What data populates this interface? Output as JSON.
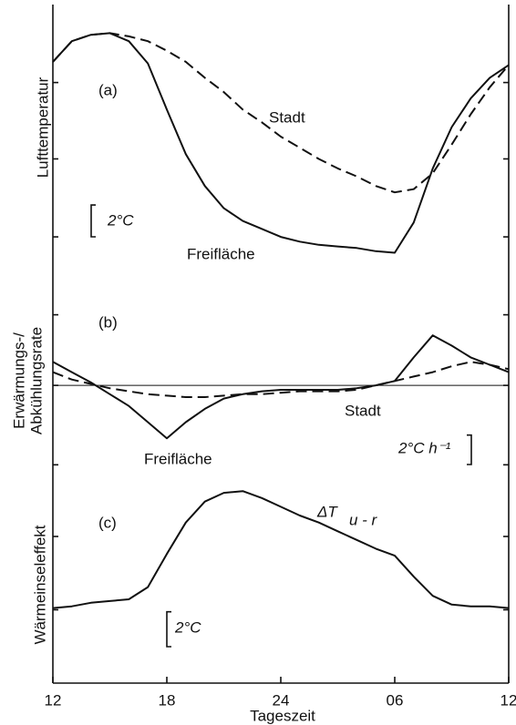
{
  "chart_data": [
    {
      "type": "line",
      "panel_label": "(a)",
      "ylabel": "Lufttemperatur",
      "x": [
        12,
        13,
        14,
        15,
        16,
        17,
        18,
        19,
        20,
        21,
        22,
        23,
        24,
        25,
        26,
        27,
        28,
        29,
        30,
        31,
        32,
        33,
        34,
        35,
        36
      ],
      "xlim": [
        12,
        36
      ],
      "ylim": [
        0,
        17
      ],
      "yticks": [
        2.4,
        7.3,
        12.1
      ],
      "series": [
        {
          "name": "Freifläche",
          "color": "#111111",
          "linestyle": "solid",
          "values": [
            13.4,
            14.7,
            15.1,
            15.2,
            14.7,
            13.3,
            10.4,
            7.6,
            5.6,
            4.2,
            3.4,
            2.9,
            2.4,
            2.1,
            1.9,
            1.8,
            1.7,
            1.5,
            1.4,
            3.3,
            6.7,
            9.3,
            11.1,
            12.4,
            13.2
          ]
        },
        {
          "name": "Stadt",
          "color": "#111111",
          "linestyle": "dashed",
          "values": [
            13.4,
            14.7,
            15.1,
            15.2,
            15.0,
            14.7,
            14.1,
            13.4,
            12.4,
            11.5,
            10.4,
            9.6,
            8.7,
            8.0,
            7.3,
            6.7,
            6.2,
            5.6,
            5.2,
            5.4,
            6.4,
            8.2,
            10.1,
            11.8,
            13.2
          ]
        }
      ],
      "scale_bar": {
        "value": 2,
        "label": "2°C"
      }
    },
    {
      "type": "line",
      "panel_label": "(b)",
      "ylabel": [
        "Erwärmungs-/",
        "Abkühlungsrate"
      ],
      "x": [
        12,
        13,
        14,
        15,
        16,
        17,
        18,
        19,
        20,
        21,
        22,
        23,
        24,
        25,
        26,
        27,
        28,
        29,
        30,
        31,
        32,
        33,
        34,
        35,
        36
      ],
      "xlim": [
        12,
        36
      ],
      "ylim": [
        -6,
        7.5
      ],
      "yticks": [
        -5.4,
        0,
        4.8
      ],
      "reference_line": 0,
      "series": [
        {
          "name": "Freifläche",
          "color": "#111111",
          "linestyle": "solid",
          "values": [
            1.6,
            0.9,
            0.2,
            -0.6,
            -1.4,
            -2.5,
            -3.6,
            -2.5,
            -1.6,
            -0.9,
            -0.6,
            -0.4,
            -0.3,
            -0.3,
            -0.3,
            -0.3,
            -0.2,
            0,
            0.3,
            1.9,
            3.4,
            2.7,
            1.9,
            1.4,
            0.9
          ]
        },
        {
          "name": "Stadt",
          "color": "#111111",
          "linestyle": "dashed",
          "values": [
            0.9,
            0.4,
            0.1,
            -0.2,
            -0.4,
            -0.6,
            -0.7,
            -0.8,
            -0.8,
            -0.7,
            -0.6,
            -0.6,
            -0.5,
            -0.4,
            -0.4,
            -0.4,
            -0.3,
            0,
            0.3,
            0.6,
            0.9,
            1.3,
            1.6,
            1.4,
            1.1
          ]
        }
      ],
      "scale_bar": {
        "value": 2,
        "label": "2°C h⁻¹"
      }
    },
    {
      "type": "line",
      "panel_label": "(c)",
      "ylabel": "Wärmeinseleffekt",
      "x": [
        12,
        13,
        14,
        15,
        16,
        17,
        18,
        19,
        20,
        21,
        22,
        23,
        24,
        25,
        26,
        27,
        28,
        29,
        30,
        31,
        32,
        33,
        34,
        35,
        36
      ],
      "xlim": [
        12,
        36
      ],
      "ylim": [
        0,
        12
      ],
      "yticks": [
        4.2,
        8.4
      ],
      "xticks": [
        12,
        18,
        24,
        {
          "value": 30,
          "label": "06"
        },
        {
          "value": 36,
          "label": "12"
        }
      ],
      "xlabel": "Tageszeit",
      "series": [
        {
          "name": [
            "ΔT",
            "u - r"
          ],
          "color": "#111111",
          "linestyle": "solid",
          "values": [
            4.3,
            4.4,
            4.6,
            4.7,
            4.8,
            5.5,
            7.4,
            9.2,
            10.4,
            10.9,
            11.0,
            10.6,
            10.1,
            9.6,
            9.2,
            8.7,
            8.2,
            7.7,
            7.3,
            6.1,
            5.0,
            4.5,
            4.4,
            4.4,
            4.3
          ]
        }
      ],
      "scale_bar": {
        "value": 2,
        "label": "2°C"
      }
    }
  ]
}
